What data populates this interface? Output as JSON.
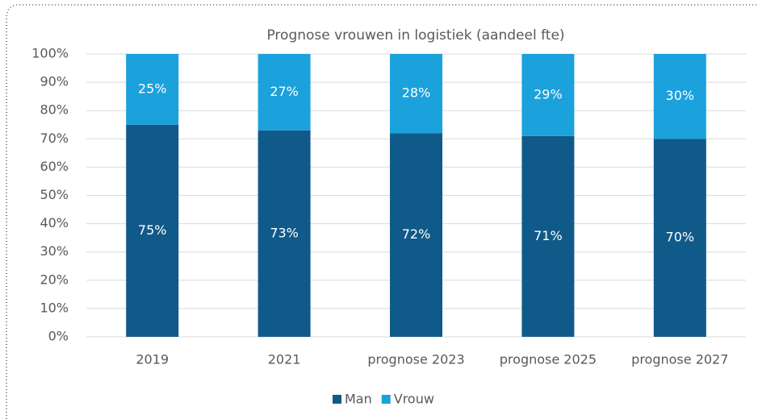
{
  "chart_data": {
    "type": "stacked_bar",
    "title": "Prognose vrouwen in logistiek (aandeel fte)",
    "categories": [
      "2019",
      "2021",
      "prognose 2023",
      "prognose 2025",
      "prognose 2027"
    ],
    "series": [
      {
        "name": "Man",
        "color": "#105a89",
        "values": [
          75,
          73,
          72,
          71,
          70
        ],
        "value_labels": [
          "75%",
          "73%",
          "72%",
          "71%",
          "70%"
        ]
      },
      {
        "name": "Vrouw",
        "color": "#1ba1dc",
        "values": [
          25,
          27,
          28,
          29,
          30
        ],
        "value_labels": [
          "25%",
          "27%",
          "28%",
          "29%",
          "30%"
        ]
      }
    ],
    "ylim": [
      0,
      100
    ],
    "yticks": [
      {
        "value": 0,
        "label": "0%"
      },
      {
        "value": 10,
        "label": "10%"
      },
      {
        "value": 20,
        "label": "20%"
      },
      {
        "value": 30,
        "label": "30%"
      },
      {
        "value": 40,
        "label": "40%"
      },
      {
        "value": 50,
        "label": "50%"
      },
      {
        "value": 60,
        "label": "60%"
      },
      {
        "value": 70,
        "label": "70%"
      },
      {
        "value": 80,
        "label": "80%"
      },
      {
        "value": 90,
        "label": "90%"
      },
      {
        "value": 100,
        "label": "100%"
      }
    ],
    "grid": true,
    "legend": "bottom"
  }
}
